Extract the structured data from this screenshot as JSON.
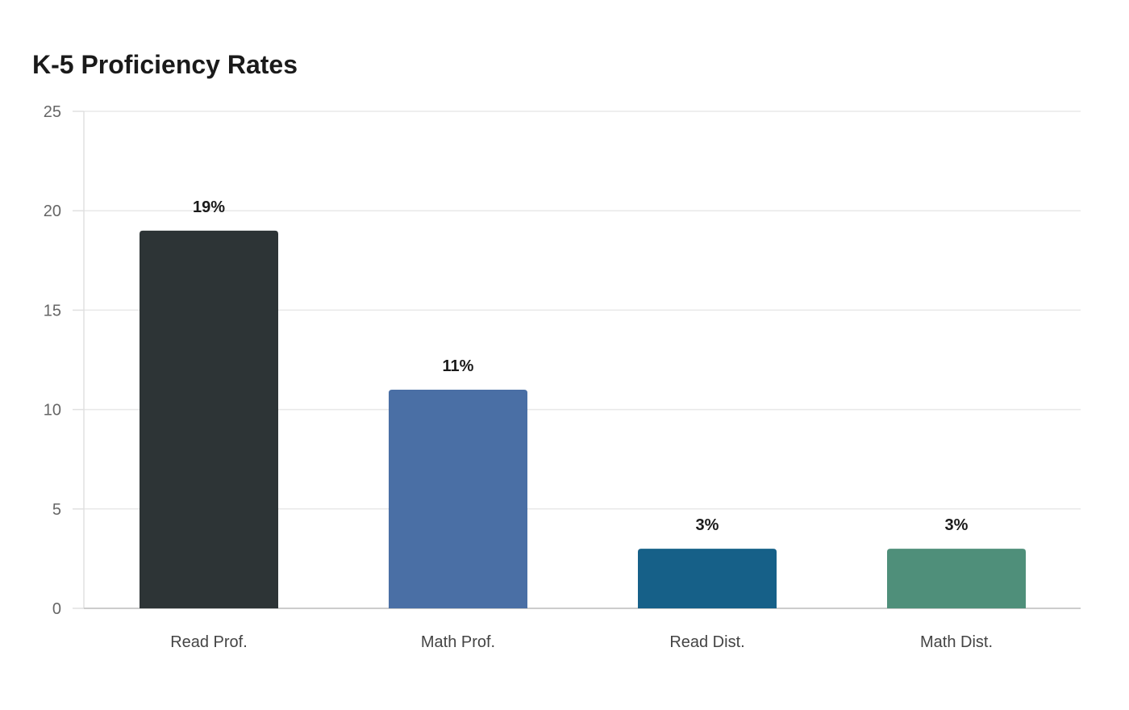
{
  "chart_data": {
    "type": "bar",
    "title": "K-5 Proficiency Rates",
    "categories": [
      "Read Prof.",
      "Math Prof.",
      "Read Dist.",
      "Math Dist."
    ],
    "values": [
      19,
      11,
      3,
      3
    ],
    "data_labels": [
      "19%",
      "11%",
      "3%",
      "3%"
    ],
    "colors": [
      "#2d3436",
      "#4a6fa5",
      "#166088",
      "#4f8f7a"
    ],
    "ylim": [
      0,
      25
    ],
    "yticks": [
      0,
      5,
      10,
      15,
      20,
      25
    ],
    "xlabel": "",
    "ylabel": "",
    "grid": true,
    "legend": "none"
  }
}
